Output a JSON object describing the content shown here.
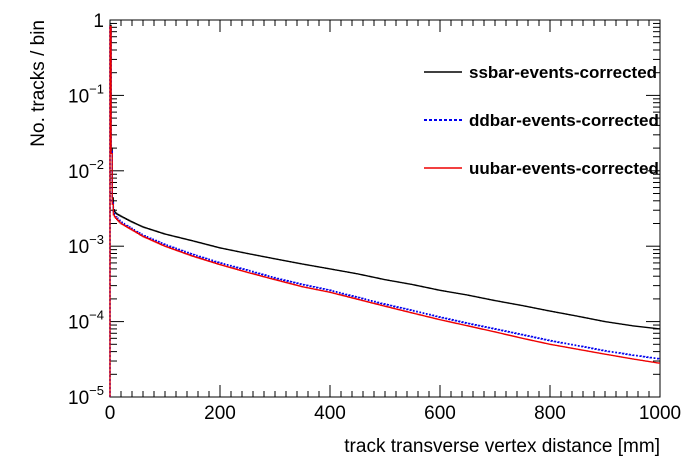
{
  "chart_data": {
    "type": "line",
    "title": "",
    "xlabel": "track transverse vertex distance [mm]",
    "ylabel": "No. tracks / bin",
    "xlim": [
      0,
      1000
    ],
    "ylim": [
      1e-05,
      1
    ],
    "yscale": "log",
    "legend_position": "top-right",
    "x_ticks": [
      {
        "value": 0,
        "label": "0"
      },
      {
        "value": 200,
        "label": "200"
      },
      {
        "value": 400,
        "label": "400"
      },
      {
        "value": 600,
        "label": "600"
      },
      {
        "value": 800,
        "label": "800"
      },
      {
        "value": 1000,
        "label": "1000"
      }
    ],
    "y_ticks": [
      {
        "value": 1,
        "base": "1",
        "exp": ""
      },
      {
        "value": 0.1,
        "base": "10",
        "exp": "−1"
      },
      {
        "value": 0.01,
        "base": "10",
        "exp": "−2"
      },
      {
        "value": 0.001,
        "base": "10",
        "exp": "−3"
      },
      {
        "value": 0.0001,
        "base": "10",
        "exp": "−4"
      },
      {
        "value": 1e-05,
        "base": "10",
        "exp": "−5"
      }
    ],
    "series": [
      {
        "name": "ssbar-events-corrected",
        "color": "#000000",
        "style": "solid",
        "x": [
          0,
          1,
          2,
          3,
          4,
          6,
          8,
          12,
          20,
          40,
          60,
          100,
          150,
          200,
          250,
          300,
          350,
          400,
          450,
          500,
          550,
          600,
          650,
          700,
          750,
          800,
          850,
          900,
          950,
          1000
        ],
        "y": [
          1.0,
          0.85,
          0.15,
          0.02,
          0.006,
          0.0032,
          0.0029,
          0.0027,
          0.0025,
          0.0021,
          0.0018,
          0.00145,
          0.00118,
          0.00095,
          0.0008,
          0.00068,
          0.00058,
          0.0005,
          0.00043,
          0.00036,
          0.00031,
          0.00026,
          0.000225,
          0.00019,
          0.000163,
          0.000138,
          0.000118,
          0.0001,
          8.8e-05,
          8e-05
        ]
      },
      {
        "name": "ddbar-events-corrected",
        "color": "#0000ee",
        "style": "dotted",
        "x": [
          0,
          1,
          2,
          3,
          4,
          6,
          8,
          12,
          20,
          40,
          60,
          100,
          150,
          200,
          250,
          300,
          350,
          400,
          450,
          500,
          550,
          600,
          650,
          700,
          750,
          800,
          850,
          900,
          950,
          1000
        ],
        "y": [
          0.95,
          0.8,
          0.13,
          0.018,
          0.005,
          0.0028,
          0.0026,
          0.0024,
          0.0021,
          0.0017,
          0.0014,
          0.00105,
          0.00078,
          0.0006,
          0.00048,
          0.00038,
          0.00031,
          0.00026,
          0.00021,
          0.00017,
          0.00014,
          0.000115,
          9.5e-05,
          8e-05,
          6.7e-05,
          5.6e-05,
          4.8e-05,
          4.1e-05,
          3.6e-05,
          3.2e-05
        ]
      },
      {
        "name": "uubar-events-corrected",
        "color": "#ee0000",
        "style": "solid",
        "x": [
          0,
          1,
          2,
          3,
          4,
          6,
          8,
          12,
          20,
          40,
          60,
          100,
          150,
          200,
          250,
          300,
          350,
          400,
          450,
          500,
          550,
          600,
          650,
          700,
          750,
          800,
          850,
          900,
          950,
          1000
        ],
        "y": [
          1.0,
          0.82,
          0.12,
          0.017,
          0.0048,
          0.0027,
          0.0025,
          0.0023,
          0.002,
          0.00165,
          0.00135,
          0.001,
          0.00074,
          0.00057,
          0.00045,
          0.00036,
          0.00029,
          0.000245,
          0.000198,
          0.00016,
          0.00013,
          0.000106,
          8.8e-05,
          7.3e-05,
          6e-05,
          5e-05,
          4.3e-05,
          3.7e-05,
          3.2e-05,
          2.8e-05
        ]
      }
    ]
  }
}
